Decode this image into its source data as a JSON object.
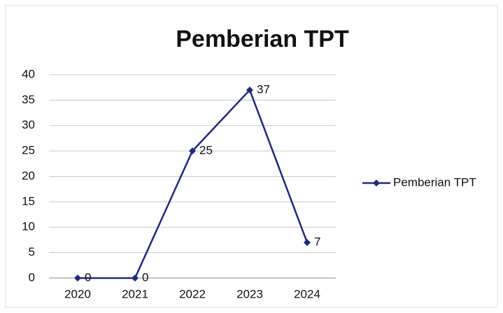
{
  "chart_data": {
    "type": "line",
    "title": "Pemberian TPT",
    "categories": [
      "2020",
      "2021",
      "2022",
      "2023",
      "2024"
    ],
    "series": [
      {
        "name": "Pemberian TPT",
        "color": "#1f2a80",
        "values": [
          0,
          0,
          25,
          37,
          7
        ]
      }
    ],
    "ylim": [
      0,
      40
    ],
    "yticks": [
      0,
      5,
      10,
      15,
      20,
      25,
      30,
      35,
      40
    ],
    "grid": true,
    "legend": "right"
  }
}
